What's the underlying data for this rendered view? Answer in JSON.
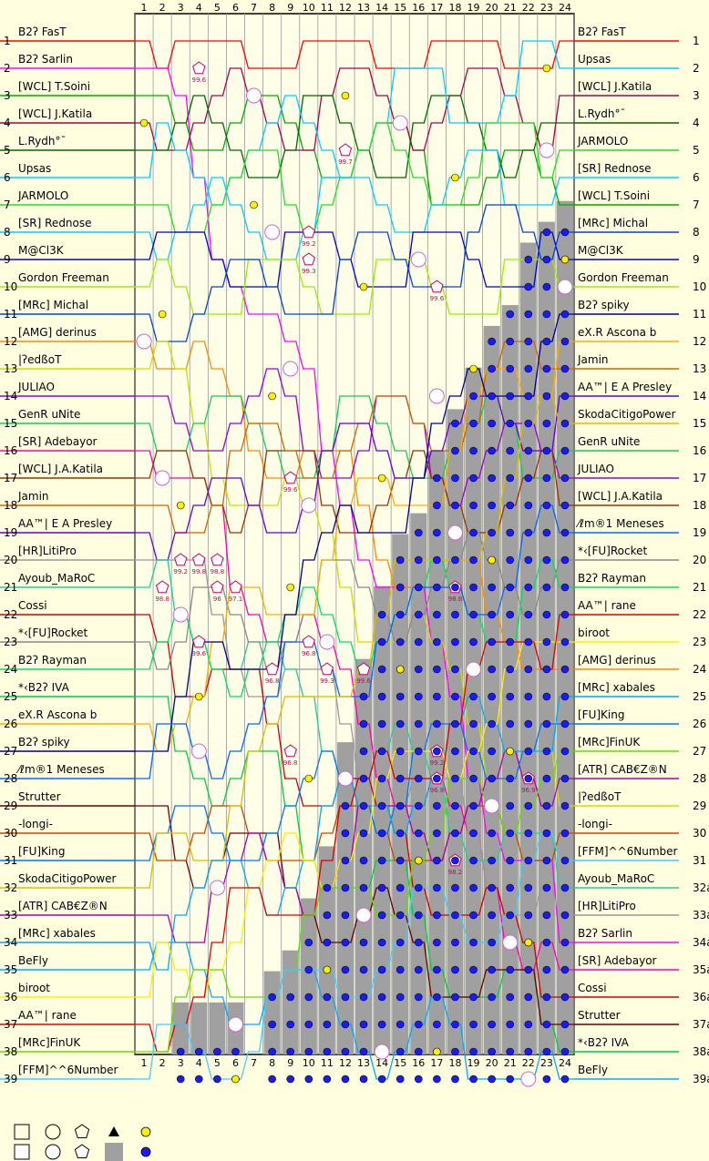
{
  "chart_data": {
    "type": "line",
    "title": "",
    "xlabel": "",
    "ylabel": "",
    "x": [
      1,
      2,
      3,
      4,
      5,
      6,
      7,
      8,
      9,
      10,
      11,
      12,
      13,
      14,
      15,
      16,
      17,
      18,
      19,
      20,
      21,
      22,
      23,
      24
    ],
    "ylim": [
      1,
      39
    ],
    "y_reversed": true,
    "grid": true,
    "left_tick_labels": [
      "1",
      "2",
      "3",
      "4",
      "5",
      "6",
      "7",
      "8",
      "9",
      "10",
      "11",
      "12",
      "13",
      "14",
      "15",
      "16",
      "17",
      "18",
      "19",
      "20",
      "21",
      "22",
      "23",
      "24",
      "25",
      "26",
      "27",
      "28",
      "29",
      "30",
      "31",
      "32",
      "33",
      "34",
      "35",
      "36",
      "37",
      "38",
      "39"
    ],
    "right_tick_labels": [
      "1",
      "2",
      "3",
      "4",
      "5",
      "6",
      "7",
      "8",
      "9",
      "10",
      "11",
      "12",
      "13",
      "14",
      "15",
      "16",
      "17",
      "18",
      "19",
      "20",
      "21",
      "22",
      "23",
      "24",
      "25",
      "26",
      "27",
      "28",
      "29",
      "30",
      "31",
      "32a",
      "33a",
      "34a",
      "35a",
      "36a",
      "37a",
      "38a",
      "39a"
    ],
    "start_order": [
      "B2ʔ FasT",
      "B2ʔ Sarlin",
      "[WCL] T.Soini",
      "[WCL] J.Katila",
      "L.Rydh°¯",
      "Upsas",
      "JARMOLO",
      "[SR] Rednose",
      "M@Cl3K",
      "Gordon Freeman",
      "[MRc] Michal",
      "[AMG] derinus",
      "|ʔedßoT",
      "JULIAO",
      "GenR uNite",
      "[SR] Adebayor",
      "[WCL] J.A.Katila",
      "Jamin",
      "AA™| E A Presley",
      "[HR]LitiPro",
      "Ayoub_MaRoC",
      "Cossi",
      "*‹[FU]Rocket",
      "B2ʔ Rayman",
      "*‹B2ʔ IVA",
      "eX.R Ascona b",
      "B2ʔ spiky",
      "⁄ℓm®1 Meneses",
      "Strutter",
      "-longi-",
      "[FU]King",
      "SkodaCitigoPower",
      "[ATR] CAB€Z®N",
      "[MRc] xabales",
      "BeFly",
      "biroot",
      "AA™| rane",
      "[MRc]FinUK",
      "[FFM]^^6Number"
    ],
    "finish_order": [
      "B2ʔ FasT",
      "Upsas",
      "[WCL] J.Katila",
      "L.Rydh°¯",
      "JARMOLO",
      "[SR] Rednose",
      "[WCL] T.Soini",
      "[MRc] Michal",
      "M@Cl3K",
      "Gordon Freeman",
      "B2ʔ spiky",
      "eX.R Ascona b",
      "Jamin",
      "AA™| E A Presley",
      "SkodaCitigoPower",
      "GenR uNite",
      "JULIAO",
      "[WCL] J.A.Katila",
      "⁄ℓm®1 Meneses",
      "*‹[FU]Rocket",
      "B2ʔ Rayman",
      "AA™| rane",
      "biroot",
      "[AMG] derinus",
      "[MRc] xabales",
      "[FU]King",
      "[MRc]FinUK",
      "[ATR] CAB€Z®N",
      "|ʔedßoT",
      "-longi-",
      "[FFM]^^6Number",
      "Ayoub_MaRoC",
      "[HR]LitiPro",
      "B2ʔ Sarlin",
      "[SR] Adebayor",
      "Cossi",
      "Strutter",
      "*‹B2ʔ IVA",
      "BeFly"
    ],
    "series_colors": [
      "#ff0000",
      "#ff00ff",
      "#00aa00",
      "#aa0044",
      "#006600",
      "#00ccff",
      "#22dd22",
      "#00ccff",
      "#0000cc",
      "#99ee00",
      "#0044cc",
      "#ff8800",
      "#ccdd00",
      "#9900cc",
      "#11cc55",
      "#ff00aa",
      "#993300",
      "#cc6600",
      "#6600cc",
      "#999999",
      "#22cc99",
      "#cc0000",
      "#888888",
      "#00dd66",
      "#00cc44",
      "#ffaa00",
      "#000088",
      "#0066ff",
      "#660000",
      "#cc4400",
      "#0077ee",
      "#ddbb00",
      "#aa00aa",
      "#00aaee",
      "#00aaff",
      "#ffee00",
      "#dd0000",
      "#66dd00",
      "#44ccff"
    ],
    "removed_share": [
      0,
      0.0,
      0.05,
      0.05,
      0.05,
      0.05,
      0.0,
      0.08,
      0.1,
      0.15,
      0.2,
      0.3,
      0.38,
      0.45,
      0.5,
      0.52,
      0.58,
      0.62,
      0.66,
      0.7,
      0.72,
      0.78,
      0.8,
      0.82
    ],
    "marker_labels": [
      {
        "x": 4,
        "y": 2,
        "text": "99.6"
      },
      {
        "x": 10,
        "y": 8,
        "text": "99.2"
      },
      {
        "x": 10,
        "y": 9,
        "text": "99.3"
      },
      {
        "x": 12,
        "y": 5,
        "text": "99.7"
      },
      {
        "x": 17,
        "y": 10,
        "text": "99.6"
      },
      {
        "x": 9,
        "y": 17,
        "text": "99.6"
      },
      {
        "x": 3,
        "y": 20,
        "text": "99.2"
      },
      {
        "x": 4,
        "y": 20,
        "text": "99.8"
      },
      {
        "x": 5,
        "y": 20,
        "text": "98.8"
      },
      {
        "x": 2,
        "y": 21,
        "text": "98.8"
      },
      {
        "x": 5,
        "y": 21,
        "text": "96"
      },
      {
        "x": 6,
        "y": 21,
        "text": "97.1"
      },
      {
        "x": 18,
        "y": 21,
        "text": "98.8"
      },
      {
        "x": 4,
        "y": 23,
        "text": "99.6"
      },
      {
        "x": 10,
        "y": 23,
        "text": "96.8"
      },
      {
        "x": 8,
        "y": 24,
        "text": "96.8"
      },
      {
        "x": 11,
        "y": 24,
        "text": "99.3"
      },
      {
        "x": 13,
        "y": 24,
        "text": "99.6"
      },
      {
        "x": 9,
        "y": 27,
        "text": "96.8"
      },
      {
        "x": 17,
        "y": 27,
        "text": "99.2"
      },
      {
        "x": 22,
        "y": 28,
        "text": "96.9"
      },
      {
        "x": 17,
        "y": 28,
        "text": "96.8"
      },
      {
        "x": 18,
        "y": 31,
        "text": "98.2"
      }
    ]
  },
  "legend": {
    "items": [
      "square",
      "circle",
      "pentagon",
      "triangle",
      "yellow-dot",
      "square-filled",
      "circle-filled",
      "pentagon-filled",
      "gray-block",
      "blue-dot"
    ]
  }
}
